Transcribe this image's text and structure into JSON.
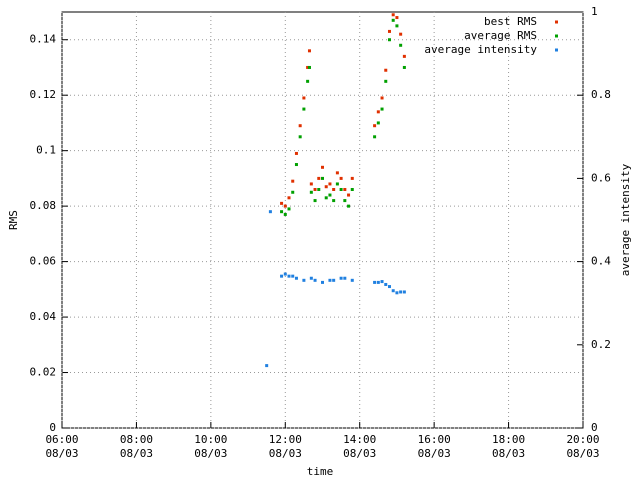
{
  "chart_data": {
    "type": "scatter",
    "xlabel": "time",
    "ylabel": "RMS",
    "y2label": "average intensity",
    "xlim": [
      6,
      20
    ],
    "xticks": [
      {
        "value": 6,
        "label": "06:00\n08/03"
      },
      {
        "value": 8,
        "label": "08:00\n08/03"
      },
      {
        "value": 10,
        "label": "10:00\n08/03"
      },
      {
        "value": 12,
        "label": "12:00\n08/03"
      },
      {
        "value": 14,
        "label": "14:00\n08/03"
      },
      {
        "value": 16,
        "label": "16:00\n08/03"
      },
      {
        "value": 18,
        "label": "18:00\n08/03"
      },
      {
        "value": 20,
        "label": "20:00\n08/03"
      }
    ],
    "ylim": [
      0,
      0.15
    ],
    "yticks": [
      0,
      0.02,
      0.04,
      0.06,
      0.08,
      0.1,
      0.12,
      0.14
    ],
    "y2lim": [
      0,
      1
    ],
    "y2ticks": [
      0,
      0.2,
      0.4,
      0.6,
      0.8,
      1
    ],
    "grid": true,
    "legend": "top-right",
    "series": [
      {
        "name": "best RMS",
        "color": "#e03000",
        "x": [
          11.9,
          12.0,
          12.1,
          12.2,
          12.3,
          12.4,
          12.5,
          12.6,
          12.65,
          12.7,
          12.8,
          12.9,
          13.0,
          13.1,
          13.2,
          13.3,
          13.4,
          13.5,
          13.6,
          13.7,
          13.8,
          14.4,
          14.5,
          14.6,
          14.7,
          14.8,
          14.9,
          15.0,
          15.1,
          15.2
        ],
        "values": [
          0.081,
          0.08,
          0.083,
          0.089,
          0.099,
          0.109,
          0.119,
          0.13,
          0.136,
          0.088,
          0.086,
          0.09,
          0.094,
          0.087,
          0.088,
          0.086,
          0.092,
          0.09,
          0.086,
          0.084,
          0.09,
          0.109,
          0.114,
          0.119,
          0.129,
          0.143,
          0.149,
          0.148,
          0.142,
          0.134
        ]
      },
      {
        "name": "average RMS",
        "color": "#00a000",
        "x": [
          11.9,
          12.0,
          12.1,
          12.2,
          12.3,
          12.4,
          12.5,
          12.6,
          12.65,
          12.7,
          12.8,
          12.9,
          13.0,
          13.1,
          13.2,
          13.3,
          13.4,
          13.5,
          13.6,
          13.7,
          13.8,
          14.4,
          14.5,
          14.6,
          14.7,
          14.8,
          14.9,
          15.0,
          15.1,
          15.2
        ],
        "values": [
          0.078,
          0.077,
          0.079,
          0.085,
          0.095,
          0.105,
          0.115,
          0.125,
          0.13,
          0.085,
          0.082,
          0.086,
          0.09,
          0.083,
          0.084,
          0.082,
          0.088,
          0.086,
          0.082,
          0.08,
          0.086,
          0.105,
          0.11,
          0.115,
          0.125,
          0.14,
          0.147,
          0.145,
          0.138,
          0.13
        ]
      },
      {
        "name": "average intensity",
        "color": "#2080e0",
        "axis": "y2",
        "x": [
          11.5,
          11.6,
          11.9,
          12.0,
          12.1,
          12.2,
          12.3,
          12.5,
          12.7,
          12.8,
          13.0,
          13.2,
          13.3,
          13.5,
          13.6,
          13.8,
          14.4,
          14.5,
          14.6,
          14.7,
          14.8,
          14.9,
          15.0,
          15.1,
          15.2
        ],
        "values": [
          0.15,
          0.52,
          0.365,
          0.37,
          0.365,
          0.365,
          0.36,
          0.355,
          0.36,
          0.355,
          0.35,
          0.355,
          0.355,
          0.36,
          0.36,
          0.355,
          0.35,
          0.35,
          0.352,
          0.345,
          0.34,
          0.33,
          0.325,
          0.327,
          0.327
        ]
      }
    ]
  }
}
